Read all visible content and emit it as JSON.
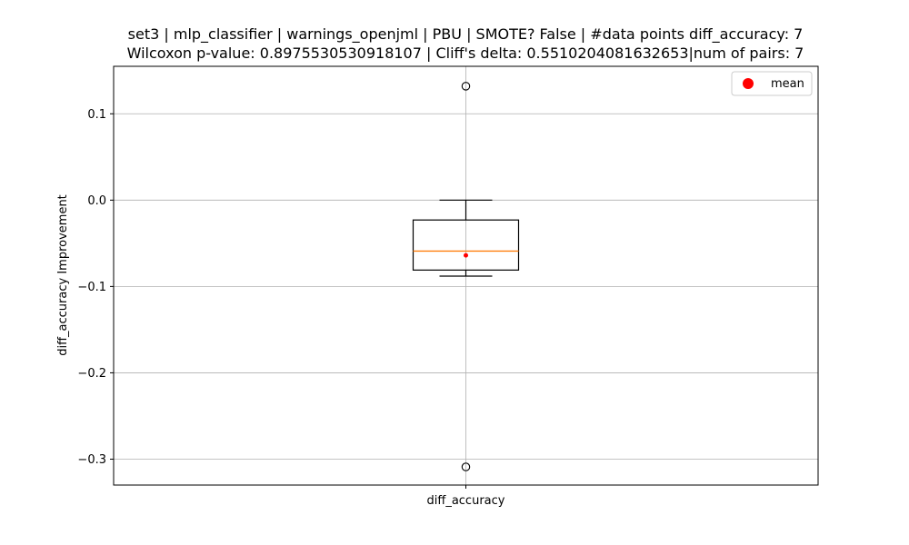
{
  "chart_data": {
    "type": "boxplot",
    "title_lines": [
      "set3 | mlp_classifier | warnings_openjml | PBU | SMOTE? False | #data points diff_accuracy: 7",
      "Wilcoxon p-value: 0.8975530530918107 | Cliff's delta: 0.5510204081632653|num of pairs: 7"
    ],
    "xlabel": "",
    "ylabel": "diff_accuracy Improvement",
    "categories": [
      "diff_accuracy"
    ],
    "ylim": [
      -0.33,
      0.155
    ],
    "yticks": [
      0.1,
      0.0,
      -0.1,
      -0.2,
      -0.3
    ],
    "ytick_labels": [
      "0.1",
      "0.0",
      "−0.1",
      "−0.2",
      "−0.3"
    ],
    "grid": true,
    "legend": {
      "placement": "top-right",
      "entries": [
        {
          "label": "mean",
          "color": "#ff0000"
        }
      ]
    },
    "box": {
      "whisker_low": -0.088,
      "q1": -0.081,
      "median": -0.059,
      "q3": -0.023,
      "whisker_high": 0.0,
      "mean": -0.064,
      "outliers": [
        0.132,
        -0.309
      ]
    },
    "colors": {
      "median": "#ff7f0e",
      "mean": "#ff0000",
      "box": "#000000",
      "grid": "#b0b0b0"
    }
  }
}
